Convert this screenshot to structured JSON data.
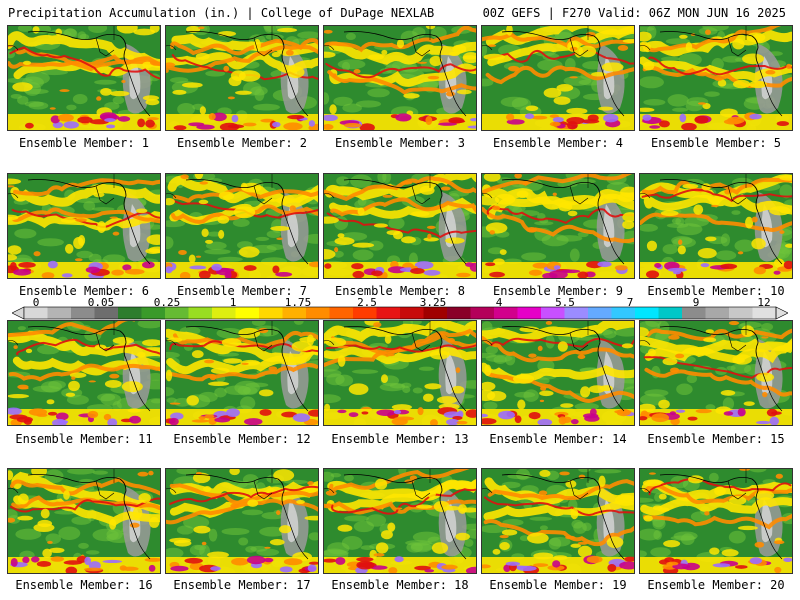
{
  "header": {
    "title": "Precipitation Accumulation (in.) | College of DuPage NEXLAB",
    "run_info": "00Z GEFS | F270 Valid: 06Z MON JUN 16 2025"
  },
  "colorbar": {
    "tick_labels": [
      "0",
      "0.05",
      "0.25",
      "1",
      "1.75",
      "2.5",
      "3.25",
      "4",
      "5.5",
      "7",
      "9",
      "12"
    ],
    "colors": [
      "#d8d8d8",
      "#b4b4b4",
      "#8c8c8c",
      "#6e6e6e",
      "#2e7d2e",
      "#3a9a2a",
      "#66bb33",
      "#99dd22",
      "#ddee11",
      "#ffff00",
      "#ffd800",
      "#ffb000",
      "#ff8c00",
      "#ff6400",
      "#ff3c00",
      "#e81414",
      "#c80a0a",
      "#a00000",
      "#8a0028",
      "#b4005a",
      "#d2008c",
      "#e600c8",
      "#c850ff",
      "#9b8cff",
      "#64aaff",
      "#32c8ff",
      "#00e6ff",
      "#00c8c8",
      "#8c8c8c",
      "#a8a8a8",
      "#c8c8c8",
      "#e0e0e0"
    ]
  },
  "members": [
    {
      "label": "Ensemble Member: 1"
    },
    {
      "label": "Ensemble Member: 2"
    },
    {
      "label": "Ensemble Member: 3"
    },
    {
      "label": "Ensemble Member: 4"
    },
    {
      "label": "Ensemble Member: 5"
    },
    {
      "label": "Ensemble Member: 6"
    },
    {
      "label": "Ensemble Member: 7"
    },
    {
      "label": "Ensemble Member: 8"
    },
    {
      "label": "Ensemble Member: 9"
    },
    {
      "label": "Ensemble Member: 10"
    },
    {
      "label": "Ensemble Member: 11"
    },
    {
      "label": "Ensemble Member: 12"
    },
    {
      "label": "Ensemble Member: 13"
    },
    {
      "label": "Ensemble Member: 14"
    },
    {
      "label": "Ensemble Member: 15"
    },
    {
      "label": "Ensemble Member: 16"
    },
    {
      "label": "Ensemble Member: 17"
    },
    {
      "label": "Ensemble Member: 18"
    },
    {
      "label": "Ensemble Member: 19"
    },
    {
      "label": "Ensemble Member: 20"
    }
  ],
  "map_colors": {
    "land": "#2e8b2e",
    "dry": "#9a9a9a",
    "light": "#6ec23a",
    "moderate": "#ffe600",
    "heavy": "#ff8c00",
    "very_heavy": "#e01010",
    "extreme": "#c8008c",
    "purple": "#9b6cff",
    "coast": "#000000"
  }
}
